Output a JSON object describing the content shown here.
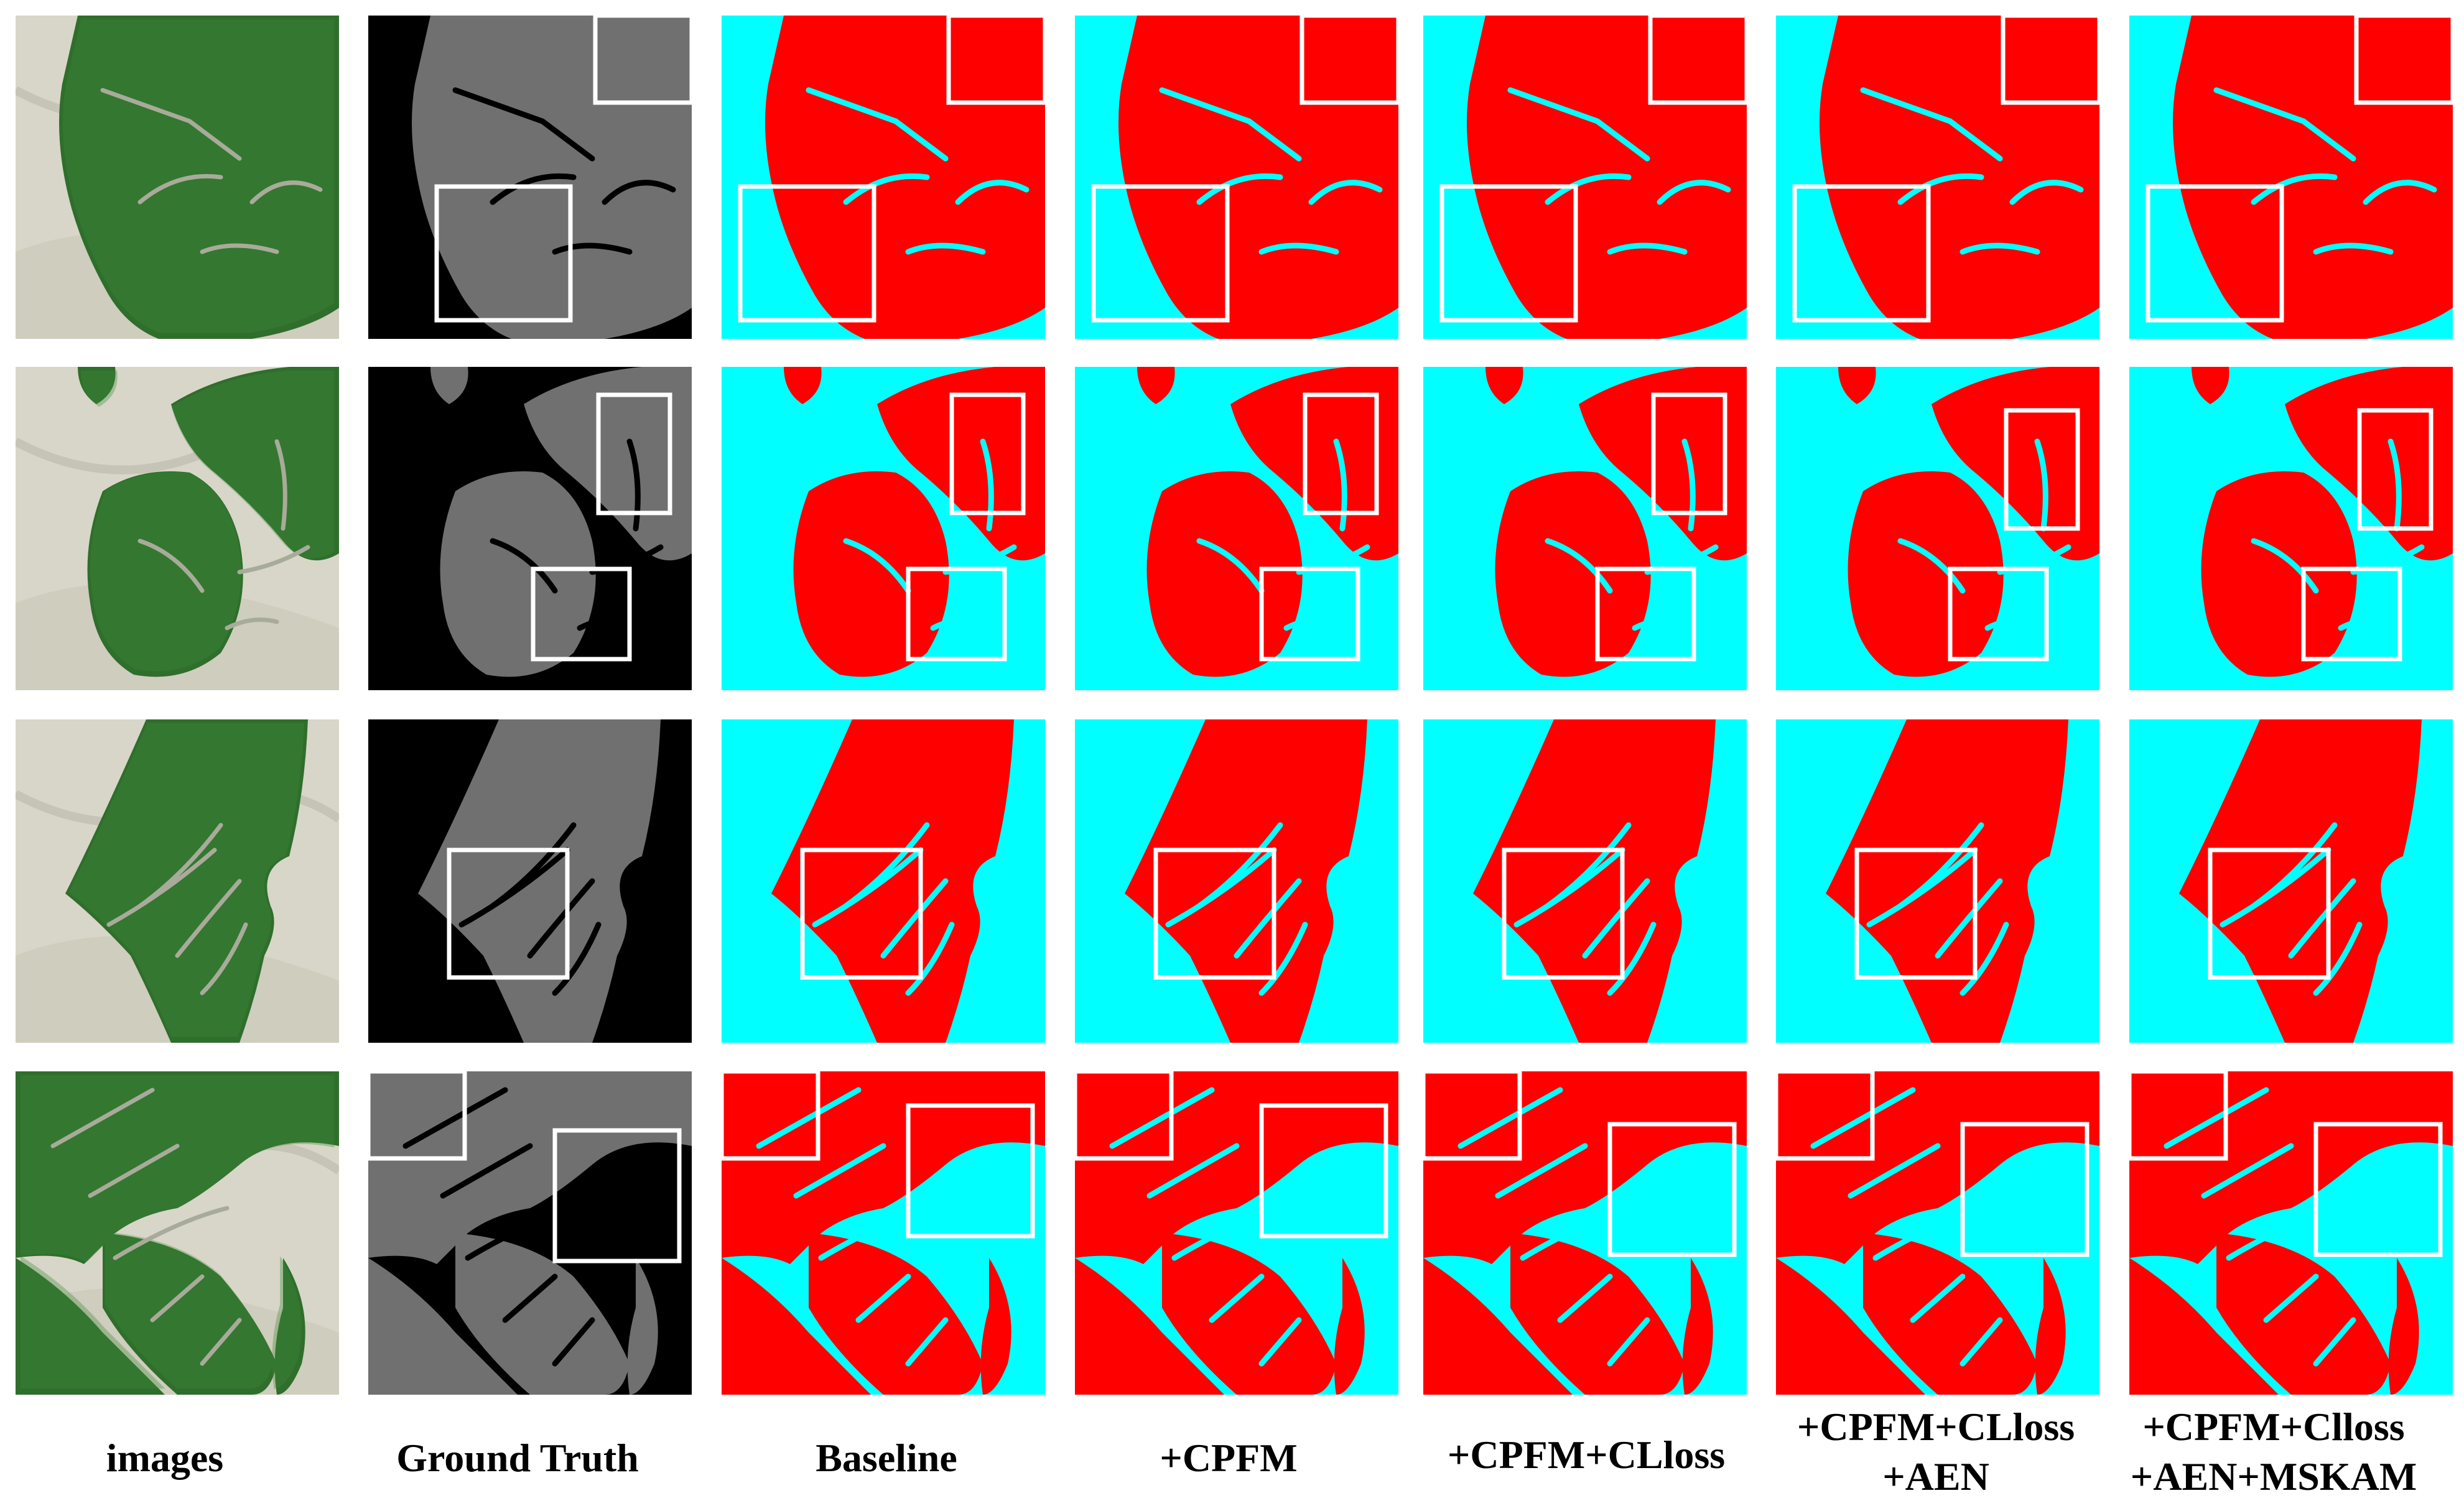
{
  "columns": [
    {
      "key": "images",
      "label_lines": [
        "images"
      ]
    },
    {
      "key": "ground_truth",
      "label_lines": [
        "Ground Truth"
      ]
    },
    {
      "key": "baseline",
      "label_lines": [
        "Baseline"
      ]
    },
    {
      "key": "cpfm",
      "label_lines": [
        "+CPFM"
      ]
    },
    {
      "key": "cpfm_clloss",
      "label_lines": [
        "+CPFM+CLloss"
      ]
    },
    {
      "key": "cpfm_clloss_aen",
      "label_lines": [
        "+CPFM+CLloss",
        "+AEN"
      ]
    },
    {
      "key": "full_model",
      "label_lines": [
        "+CPFM+Clloss",
        "+AEN+MSKAM"
      ]
    }
  ],
  "rows": 4,
  "colors": {
    "mangrove_pred": "#ff0000",
    "background_pred": "#00ffff",
    "gt_mangrove": "#707070",
    "gt_background": "#000000",
    "highlight_box": "#ffffff",
    "image_tidal_flat": "#d8d6c8",
    "image_vegetation": "#2f6e2c"
  }
}
